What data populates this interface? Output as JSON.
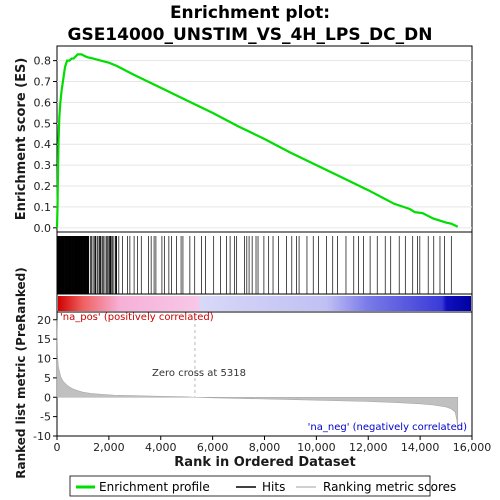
{
  "chart_data": {
    "type": "line",
    "title": "Enrichment plot:",
    "subtitle": "GSE14000_UNSTIM_VS_4H_LPS_DC_DN",
    "xlabel": "Rank in Ordered Dataset",
    "ylabel_top": "Enrichment score (ES)",
    "ylabel_bottom": "Ranked list metric (PreRanked)",
    "xlim": [
      0,
      16000
    ],
    "xticks": [
      "0",
      "2,000",
      "4,000",
      "6,000",
      "8,000",
      "10,000",
      "12,000",
      "14,000",
      "16,000"
    ],
    "es_ylim": [
      -0.02,
      0.87
    ],
    "es_yticks": [
      "0.0",
      "0.1",
      "0.2",
      "0.3",
      "0.4",
      "0.5",
      "0.6",
      "0.7",
      "0.8"
    ],
    "metric_ylim": [
      -10,
      22
    ],
    "metric_yticks": [
      "-10",
      "-5",
      "0",
      "5",
      "10",
      "15",
      "20"
    ],
    "es_curve": {
      "name": "Enrichment profile",
      "x": [
        0,
        20,
        40,
        60,
        90,
        130,
        180,
        240,
        310,
        390,
        480,
        560,
        640,
        720,
        800,
        880,
        950,
        1020,
        1100,
        1200,
        1400,
        1700,
        2000,
        2300,
        3000,
        4000,
        5000,
        6000,
        7000,
        8000,
        9000,
        10000,
        11000,
        12000,
        13000,
        13600,
        13800,
        14100,
        14500,
        15000,
        15200,
        15450
      ],
      "y": [
        0.0,
        0.1,
        0.28,
        0.42,
        0.53,
        0.6,
        0.66,
        0.71,
        0.77,
        0.8,
        0.8,
        0.81,
        0.81,
        0.82,
        0.83,
        0.83,
        0.83,
        0.825,
        0.82,
        0.815,
        0.81,
        0.8,
        0.79,
        0.775,
        0.73,
        0.67,
        0.61,
        0.55,
        0.485,
        0.425,
        0.36,
        0.3,
        0.24,
        0.18,
        0.115,
        0.09,
        0.075,
        0.07,
        0.045,
        0.025,
        0.02,
        0.005
      ]
    },
    "metric": {
      "name": "Ranking metric scores",
      "x": [
        0,
        20,
        50,
        100,
        150,
        250,
        400,
        600,
        800,
        1000,
        1300,
        1700,
        2200,
        3000,
        4000,
        5000,
        5318,
        6000,
        8000,
        10000,
        12000,
        13000,
        14000,
        14500,
        15000,
        15200,
        15350,
        15420,
        15450
      ],
      "y": [
        20,
        11,
        8,
        6.5,
        5.2,
        4.0,
        3.0,
        2.2,
        1.7,
        1.3,
        1.0,
        0.75,
        0.55,
        0.4,
        0.25,
        0.1,
        0.0,
        -0.15,
        -0.45,
        -0.75,
        -1.1,
        -1.35,
        -1.7,
        -2.0,
        -2.5,
        -3.0,
        -3.8,
        -6.0,
        -8.5
      ]
    },
    "hits_series": "Hits",
    "zero_cross_label": "Zero cross at 5318",
    "zero_cross_x": 5318,
    "pos_label": "'na_pos' (positively correlated)",
    "neg_label": "'na_neg' (negatively correlated)",
    "legend": [
      "Enrichment profile",
      "Hits",
      "Ranking metric scores"
    ],
    "colors": {
      "es_line": "#00dd00",
      "hits": "#000000",
      "metric_fill": "#c0c0c0",
      "pos_text": "#cc0000",
      "neg_text": "#0000cc",
      "zero_line": "#bbbbbb"
    }
  }
}
